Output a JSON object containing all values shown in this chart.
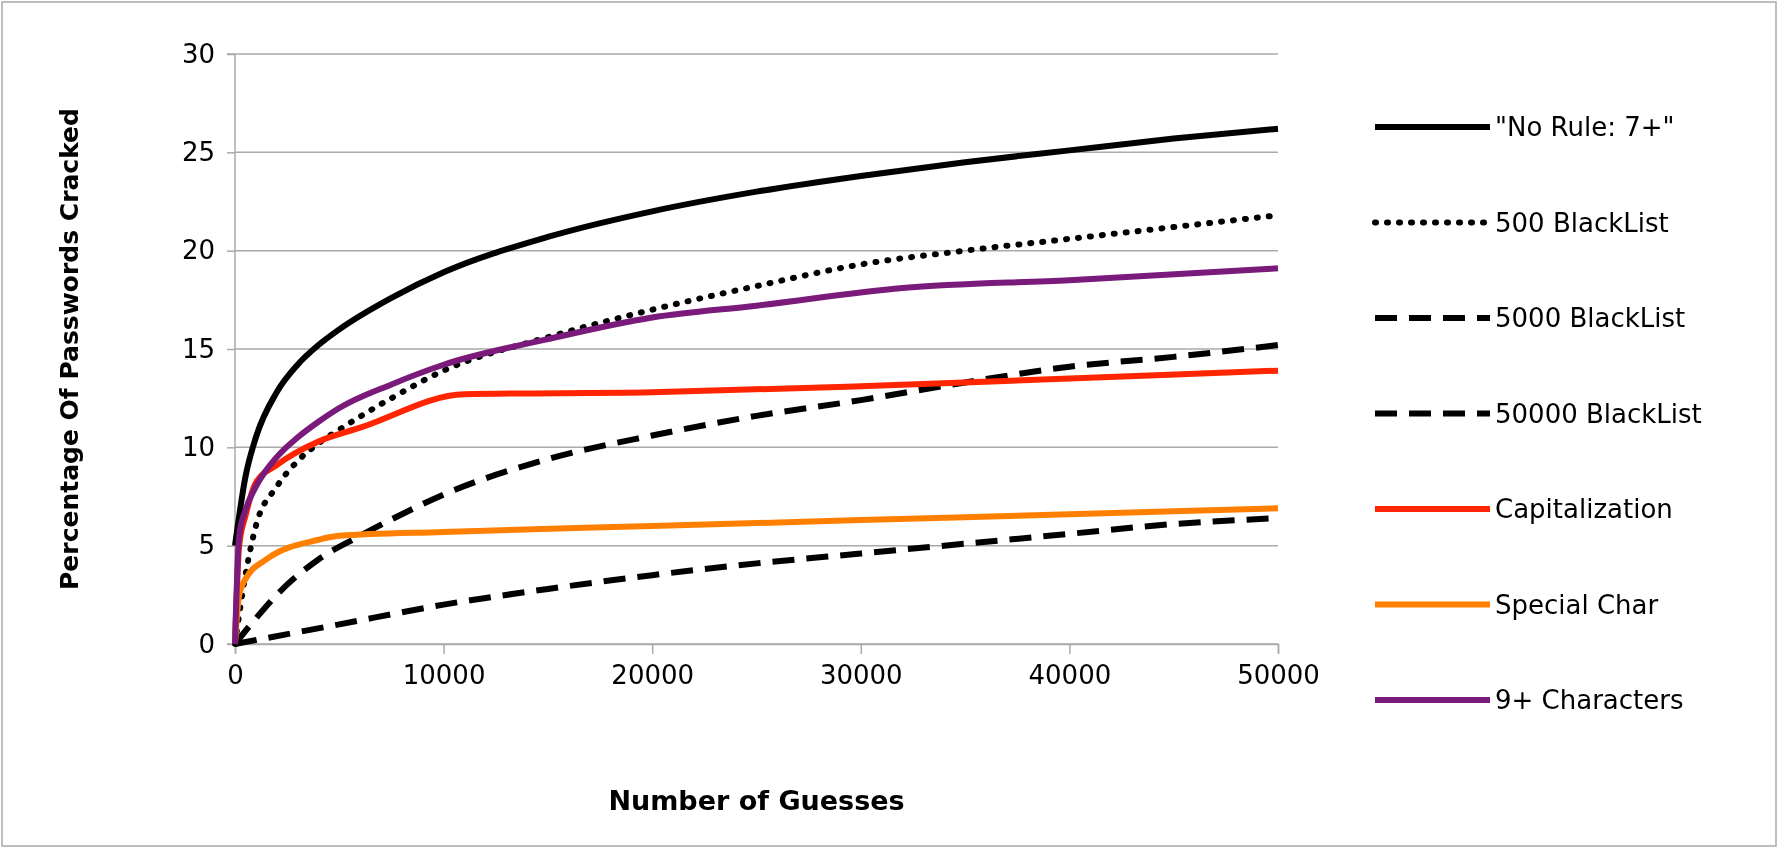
{
  "chart_data": {
    "type": "line",
    "xlabel": "Number of Guesses",
    "ylabel": "Percentage Of Passwords Cracked",
    "xlim": [
      0,
      50000
    ],
    "xticks": [
      0,
      10000,
      20000,
      30000,
      40000,
      50000
    ],
    "ylim": [
      0,
      30
    ],
    "yticks": [
      0,
      5,
      10,
      15,
      20,
      25,
      30
    ],
    "grid": "y",
    "legend": "right",
    "marker": "none",
    "series": [
      {
        "name": "\"No Rule: 7+\"",
        "color": "#000000",
        "line_style": "solid",
        "x": [
          0,
          500,
          1000,
          2000,
          3000,
          4000,
          5000,
          7500,
          10000,
          15000,
          20000,
          25000,
          30000,
          35000,
          40000,
          45000,
          50000
        ],
        "values": [
          5,
          8.5,
          10.5,
          12.8,
          14.2,
          15.2,
          16,
          17.6,
          18.9,
          20.7,
          22,
          23,
          23.8,
          24.5,
          25.1,
          25.7,
          26.2
        ]
      },
      {
        "name": "500 BlackList",
        "color": "#000000",
        "line_style": "dotted",
        "x": [
          0,
          500,
          1000,
          2000,
          3000,
          4000,
          5000,
          7500,
          10000,
          15000,
          20000,
          25000,
          30000,
          35000,
          40000,
          45000,
          50000
        ],
        "values": [
          0,
          3.5,
          6,
          8,
          9.3,
          10.2,
          10.9,
          12.5,
          13.9,
          15.6,
          17,
          18.2,
          19.3,
          20,
          20.6,
          21.2,
          21.8
        ]
      },
      {
        "name": "5000 BlackList",
        "color": "#000000",
        "line_style": "dashed",
        "x": [
          0,
          1000,
          2000,
          4000,
          6000,
          8000,
          10000,
          15000,
          20000,
          25000,
          30000,
          35000,
          40000,
          45000,
          50000
        ],
        "values": [
          0,
          1.3,
          2.5,
          4.3,
          5.5,
          6.6,
          7.6,
          9.4,
          10.6,
          11.6,
          12.4,
          13.3,
          14.1,
          14.6,
          15.2
        ]
      },
      {
        "name": "50000 BlackList",
        "color": "#000000",
        "line_style": "dashed",
        "x": [
          0,
          5000,
          10000,
          15000,
          20000,
          25000,
          30000,
          35000,
          40000,
          45000,
          50000
        ],
        "values": [
          0,
          1,
          2,
          2.8,
          3.5,
          4.1,
          4.6,
          5.1,
          5.6,
          6.1,
          6.4
        ]
      },
      {
        "name": "Capitalization",
        "color": "#ff2500",
        "line_style": "solid",
        "x": [
          0,
          200,
          500,
          1000,
          2000,
          4000,
          6000,
          11000,
          20000,
          30000,
          40000,
          50000
        ],
        "values": [
          0,
          5,
          6.5,
          8.2,
          9.1,
          10.3,
          11,
          12.7,
          12.8,
          13.1,
          13.5,
          13.9
        ]
      },
      {
        "name": "Special Char",
        "color": "#ff8000",
        "line_style": "solid",
        "x": [
          0,
          200,
          500,
          1500,
          4000,
          5000,
          10000,
          20000,
          30000,
          40000,
          50000
        ],
        "values": [
          0,
          2.5,
          3.3,
          4.3,
          5.3,
          5.5,
          5.7,
          6,
          6.3,
          6.6,
          6.9
        ]
      },
      {
        "name": "9+ Characters",
        "color": "#7a1a7a",
        "line_style": "solid",
        "x": [
          0,
          200,
          500,
          1000,
          2000,
          3000,
          4000,
          5000,
          7500,
          10000,
          15000,
          20000,
          25000,
          32000,
          40000,
          50000
        ],
        "values": [
          0,
          5.5,
          6.8,
          8,
          9.5,
          10.5,
          11.3,
          12,
          13.2,
          14.2,
          15.5,
          16.6,
          17.2,
          18.1,
          18.5,
          19.1
        ]
      }
    ]
  }
}
